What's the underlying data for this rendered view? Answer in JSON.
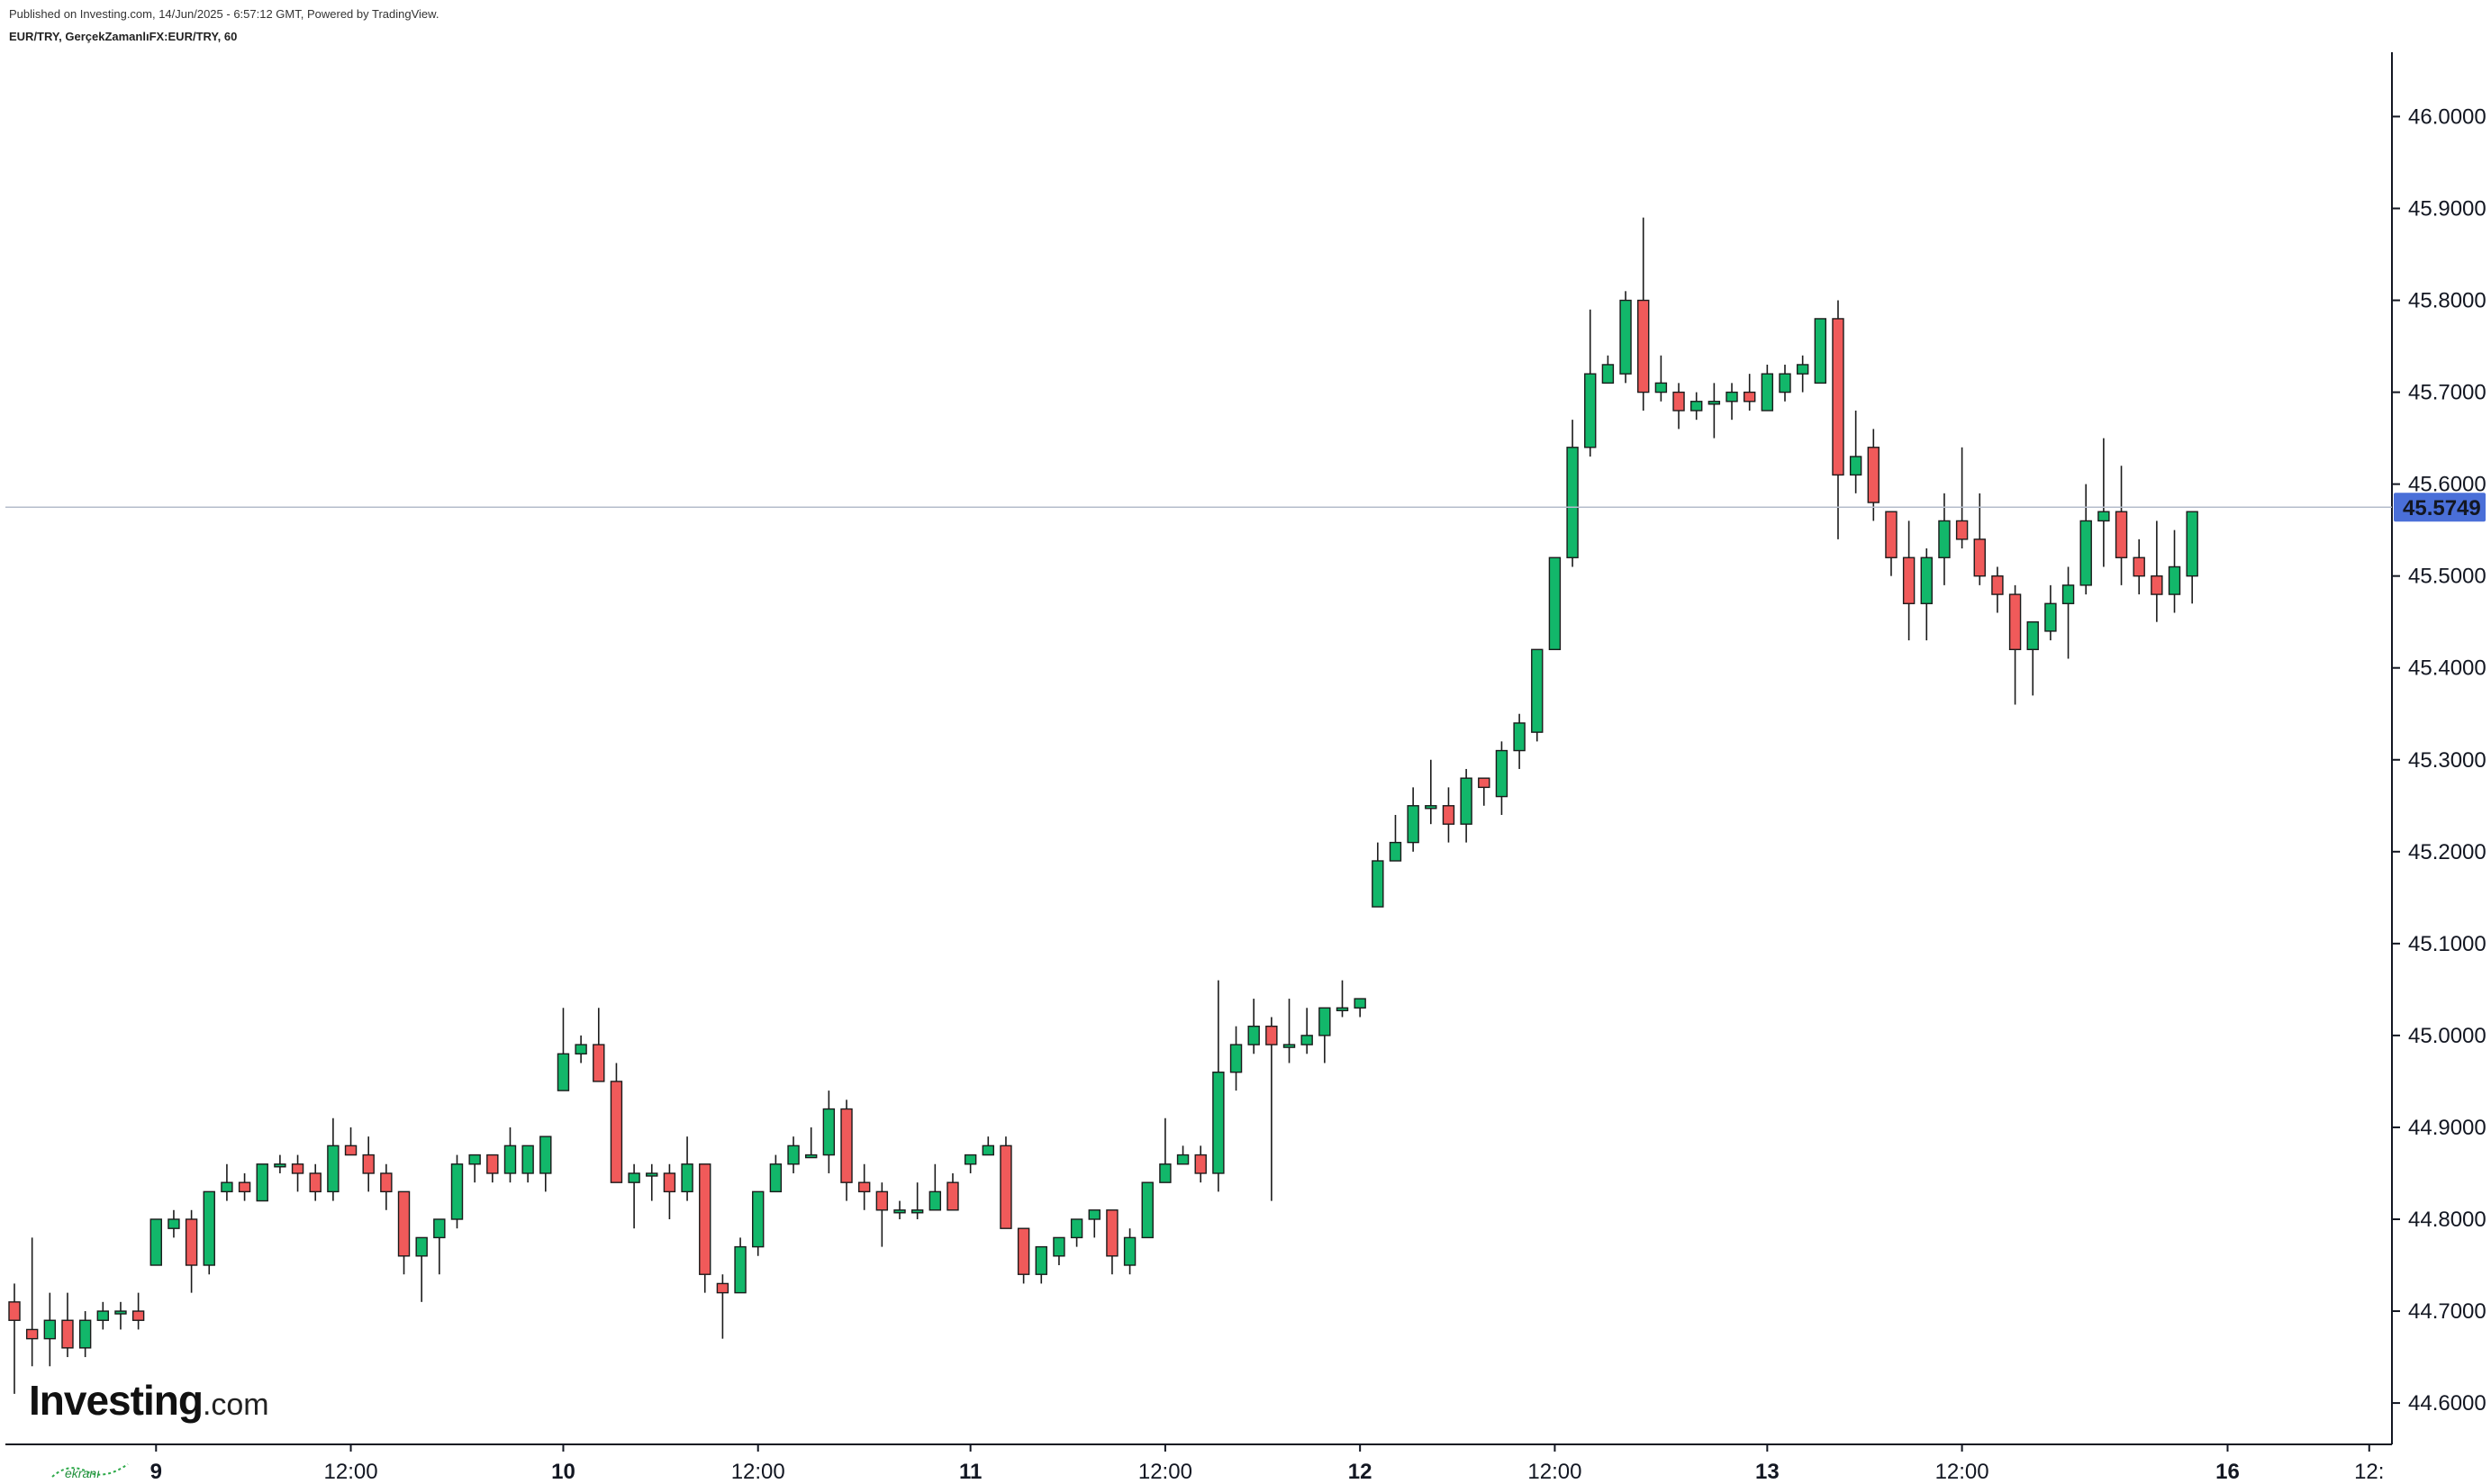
{
  "header": {
    "published": "Published on Investing.com, 14/Jun/2025 - 6:57:12 GMT, Powered by TradingView.",
    "symbol": "EUR/TRY, GerçekZamanlıFX:EUR/TRY, 60"
  },
  "logo": {
    "brand": "Investing",
    "suffix": ".com"
  },
  "watermark": {
    "text": "ekranı"
  },
  "colors": {
    "up": "#12b76a",
    "down": "#f05a5a",
    "last_price_bg": "#4a6fd8",
    "grid": "#cfd6e4"
  },
  "chart_data": {
    "type": "candlestick",
    "interval": "60",
    "last_price": 45.5749,
    "last_price_label": "45.5749",
    "y_ticks": [
      "46.0000",
      "45.9000",
      "45.8000",
      "45.7000",
      "45.6000",
      "45.5000",
      "45.4000",
      "45.3000",
      "45.2000",
      "45.1000",
      "45.0000",
      "44.9000",
      "44.8000",
      "44.7000",
      "44.6000"
    ],
    "ylim": [
      44.555,
      46.07
    ],
    "x_ticks": [
      {
        "label": "9",
        "i": 8,
        "bold": true
      },
      {
        "label": "12:00",
        "i": 19,
        "bold": false
      },
      {
        "label": "10",
        "i": 31,
        "bold": true
      },
      {
        "label": "12:00",
        "i": 42,
        "bold": false
      },
      {
        "label": "11",
        "i": 54,
        "bold": true
      },
      {
        "label": "12:00",
        "i": 65,
        "bold": false
      },
      {
        "label": "12",
        "i": 76,
        "bold": true
      },
      {
        "label": "12:00",
        "i": 87,
        "bold": false
      },
      {
        "label": "13",
        "i": 99,
        "bold": true
      },
      {
        "label": "12:00",
        "i": 110,
        "bold": false
      },
      {
        "label": "16",
        "i": 125,
        "bold": true
      },
      {
        "label": "12:",
        "i": 133,
        "bold": false
      }
    ],
    "candles": [
      [
        44.71,
        44.73,
        44.61,
        44.69
      ],
      [
        44.68,
        44.78,
        44.64,
        44.67
      ],
      [
        44.67,
        44.72,
        44.64,
        44.69
      ],
      [
        44.69,
        44.72,
        44.65,
        44.66
      ],
      [
        44.66,
        44.7,
        44.65,
        44.69
      ],
      [
        44.69,
        44.71,
        44.68,
        44.7
      ],
      [
        44.7,
        44.71,
        44.68,
        44.7
      ],
      [
        44.7,
        44.72,
        44.68,
        44.69
      ],
      [
        44.75,
        44.8,
        44.75,
        44.8
      ],
      [
        44.79,
        44.81,
        44.78,
        44.8
      ],
      [
        44.8,
        44.81,
        44.72,
        44.75
      ],
      [
        44.75,
        44.83,
        44.74,
        44.83
      ],
      [
        44.83,
        44.86,
        44.82,
        44.84
      ],
      [
        44.84,
        44.85,
        44.82,
        44.83
      ],
      [
        44.82,
        44.86,
        44.82,
        44.86
      ],
      [
        44.86,
        44.87,
        44.85,
        44.86
      ],
      [
        44.86,
        44.87,
        44.83,
        44.85
      ],
      [
        44.85,
        44.86,
        44.82,
        44.83
      ],
      [
        44.83,
        44.91,
        44.82,
        44.88
      ],
      [
        44.88,
        44.9,
        44.87,
        44.87
      ],
      [
        44.87,
        44.89,
        44.83,
        44.85
      ],
      [
        44.85,
        44.86,
        44.81,
        44.83
      ],
      [
        44.83,
        44.83,
        44.74,
        44.76
      ],
      [
        44.76,
        44.78,
        44.71,
        44.78
      ],
      [
        44.78,
        44.8,
        44.74,
        44.8
      ],
      [
        44.8,
        44.87,
        44.79,
        44.86
      ],
      [
        44.86,
        44.87,
        44.84,
        44.87
      ],
      [
        44.87,
        44.87,
        44.84,
        44.85
      ],
      [
        44.85,
        44.9,
        44.84,
        44.88
      ],
      [
        44.85,
        44.88,
        44.84,
        44.88
      ],
      [
        44.85,
        44.89,
        44.83,
        44.89
      ],
      [
        44.94,
        45.03,
        44.94,
        44.98
      ],
      [
        44.98,
        45.0,
        44.97,
        44.99
      ],
      [
        44.99,
        45.03,
        44.95,
        44.95
      ],
      [
        44.95,
        44.97,
        44.84,
        44.84
      ],
      [
        44.84,
        44.86,
        44.79,
        44.85
      ],
      [
        44.85,
        44.86,
        44.82,
        44.85
      ],
      [
        44.85,
        44.86,
        44.8,
        44.83
      ],
      [
        44.83,
        44.89,
        44.82,
        44.86
      ],
      [
        44.86,
        44.86,
        44.72,
        44.74
      ],
      [
        44.73,
        44.74,
        44.67,
        44.72
      ],
      [
        44.72,
        44.78,
        44.72,
        44.77
      ],
      [
        44.77,
        44.83,
        44.76,
        44.83
      ],
      [
        44.83,
        44.87,
        44.83,
        44.86
      ],
      [
        44.86,
        44.89,
        44.85,
        44.88
      ],
      [
        44.87,
        44.9,
        44.87,
        44.87
      ],
      [
        44.87,
        44.94,
        44.85,
        44.92
      ],
      [
        44.92,
        44.93,
        44.82,
        44.84
      ],
      [
        44.84,
        44.86,
        44.81,
        44.83
      ],
      [
        44.83,
        44.84,
        44.77,
        44.81
      ],
      [
        44.81,
        44.82,
        44.8,
        44.81
      ],
      [
        44.81,
        44.84,
        44.8,
        44.81
      ],
      [
        44.81,
        44.86,
        44.81,
        44.83
      ],
      [
        44.84,
        44.85,
        44.81,
        44.81
      ],
      [
        44.86,
        44.87,
        44.85,
        44.87
      ],
      [
        44.87,
        44.89,
        44.87,
        44.88
      ],
      [
        44.88,
        44.89,
        44.79,
        44.79
      ],
      [
        44.79,
        44.79,
        44.73,
        44.74
      ],
      [
        44.74,
        44.77,
        44.73,
        44.77
      ],
      [
        44.76,
        44.78,
        44.75,
        44.78
      ],
      [
        44.78,
        44.8,
        44.77,
        44.8
      ],
      [
        44.8,
        44.81,
        44.78,
        44.81
      ],
      [
        44.81,
        44.81,
        44.74,
        44.76
      ],
      [
        44.75,
        44.79,
        44.74,
        44.78
      ],
      [
        44.78,
        44.84,
        44.78,
        44.84
      ],
      [
        44.84,
        44.91,
        44.84,
        44.86
      ],
      [
        44.86,
        44.88,
        44.86,
        44.87
      ],
      [
        44.87,
        44.88,
        44.84,
        44.85
      ],
      [
        44.85,
        45.06,
        44.83,
        44.96
      ],
      [
        44.96,
        45.01,
        44.94,
        44.99
      ],
      [
        44.99,
        45.04,
        44.98,
        45.01
      ],
      [
        45.01,
        45.02,
        44.82,
        44.99
      ],
      [
        44.99,
        45.04,
        44.97,
        44.99
      ],
      [
        44.99,
        45.03,
        44.98,
        45.0
      ],
      [
        45.0,
        45.03,
        44.97,
        45.03
      ],
      [
        45.03,
        45.06,
        45.02,
        45.03
      ],
      [
        45.03,
        45.04,
        45.02,
        45.04
      ],
      [
        45.14,
        45.21,
        45.14,
        45.19
      ],
      [
        45.19,
        45.24,
        45.19,
        45.21
      ],
      [
        45.21,
        45.27,
        45.2,
        45.25
      ],
      [
        45.25,
        45.3,
        45.23,
        45.25
      ],
      [
        45.25,
        45.27,
        45.21,
        45.23
      ],
      [
        45.23,
        45.29,
        45.21,
        45.28
      ],
      [
        45.28,
        45.28,
        45.25,
        45.27
      ],
      [
        45.26,
        45.32,
        45.24,
        45.31
      ],
      [
        45.31,
        45.35,
        45.29,
        45.34
      ],
      [
        45.33,
        45.42,
        45.32,
        45.42
      ],
      [
        45.42,
        45.52,
        45.42,
        45.52
      ],
      [
        45.52,
        45.67,
        45.51,
        45.64
      ],
      [
        45.64,
        45.79,
        45.63,
        45.72
      ],
      [
        45.71,
        45.74,
        45.71,
        45.73
      ],
      [
        45.72,
        45.81,
        45.71,
        45.8
      ],
      [
        45.8,
        45.89,
        45.68,
        45.7
      ],
      [
        45.7,
        45.74,
        45.69,
        45.71
      ],
      [
        45.7,
        45.71,
        45.66,
        45.68
      ],
      [
        45.68,
        45.7,
        45.67,
        45.69
      ],
      [
        45.69,
        45.71,
        45.65,
        45.69
      ],
      [
        45.69,
        45.71,
        45.67,
        45.7
      ],
      [
        45.7,
        45.72,
        45.68,
        45.69
      ],
      [
        45.68,
        45.73,
        45.68,
        45.72
      ],
      [
        45.7,
        45.73,
        45.69,
        45.72
      ],
      [
        45.72,
        45.74,
        45.7,
        45.73
      ],
      [
        45.71,
        45.78,
        45.71,
        45.78
      ],
      [
        45.78,
        45.8,
        45.54,
        45.61
      ],
      [
        45.61,
        45.68,
        45.59,
        45.63
      ],
      [
        45.64,
        45.66,
        45.56,
        45.58
      ],
      [
        45.57,
        45.57,
        45.5,
        45.52
      ],
      [
        45.52,
        45.56,
        45.43,
        45.47
      ],
      [
        45.47,
        45.53,
        45.43,
        45.52
      ],
      [
        45.52,
        45.59,
        45.49,
        45.56
      ],
      [
        45.56,
        45.64,
        45.53,
        45.54
      ],
      [
        45.54,
        45.59,
        45.49,
        45.5
      ],
      [
        45.5,
        45.51,
        45.46,
        45.48
      ],
      [
        45.48,
        45.49,
        45.36,
        45.42
      ],
      [
        45.42,
        45.45,
        45.37,
        45.45
      ],
      [
        45.44,
        45.49,
        45.43,
        45.47
      ],
      [
        45.47,
        45.51,
        45.41,
        45.49
      ],
      [
        45.49,
        45.6,
        45.48,
        45.56
      ],
      [
        45.56,
        45.65,
        45.51,
        45.57
      ],
      [
        45.57,
        45.62,
        45.49,
        45.52
      ],
      [
        45.52,
        45.54,
        45.48,
        45.5
      ],
      [
        45.5,
        45.56,
        45.45,
        45.48
      ],
      [
        45.48,
        45.55,
        45.46,
        45.51
      ],
      [
        45.5,
        45.57,
        45.47,
        45.57
      ]
    ]
  }
}
